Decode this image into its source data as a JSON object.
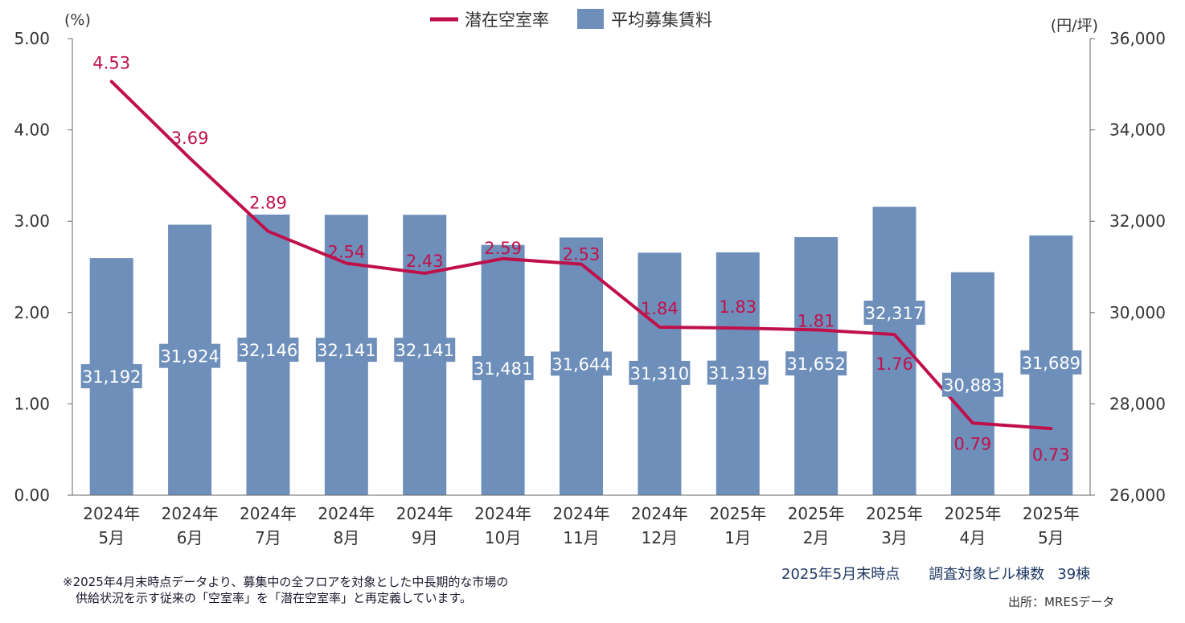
{
  "chart_data": {
    "type": "bar",
    "categories": [
      [
        "2024年",
        "5月"
      ],
      [
        "2024年",
        "6月"
      ],
      [
        "2024年",
        "7月"
      ],
      [
        "2024年",
        "8月"
      ],
      [
        "2024年",
        "9月"
      ],
      [
        "2024年",
        "10月"
      ],
      [
        "2024年",
        "11月"
      ],
      [
        "2024年",
        "12月"
      ],
      [
        "2025年",
        "1月"
      ],
      [
        "2025年",
        "2月"
      ],
      [
        "2025年",
        "3月"
      ],
      [
        "2025年",
        "4月"
      ],
      [
        "2025年",
        "5月"
      ]
    ],
    "series": [
      {
        "name": "平均募集賃料",
        "type": "bar",
        "axis": "right",
        "color": "#6f8fbb",
        "values": [
          31192,
          31924,
          32146,
          32141,
          32141,
          31481,
          31644,
          31310,
          31319,
          31652,
          32317,
          30883,
          31689
        ],
        "labels": [
          "31,192",
          "31,924",
          "32,146",
          "32,141",
          "32,141",
          "31,481",
          "31,644",
          "31,310",
          "31,319",
          "31,652",
          "32,317",
          "30,883",
          "31,689"
        ]
      },
      {
        "name": "潜在空室率",
        "type": "line",
        "axis": "left",
        "color": "#c0104a",
        "values": [
          4.53,
          3.69,
          2.89,
          2.54,
          2.43,
          2.59,
          2.53,
          1.84,
          1.83,
          1.81,
          1.76,
          0.79,
          0.73
        ],
        "labels": [
          "4.53",
          "3.69",
          "2.89",
          "2.54",
          "2.43",
          "2.59",
          "2.53",
          "1.84",
          "1.83",
          "1.81",
          "1.76",
          "0.79",
          "0.73"
        ]
      }
    ],
    "y_left": {
      "unit_label": "(%)",
      "min": 0,
      "max": 5,
      "ticks": [
        "0.00",
        "1.00",
        "2.00",
        "3.00",
        "4.00",
        "5.00"
      ]
    },
    "y_right": {
      "unit_label": "(円/坪)",
      "min": 26000,
      "max": 36000,
      "ticks": [
        "26,000",
        "28,000",
        "30,000",
        "32,000",
        "34,000",
        "36,000"
      ]
    },
    "legend": {
      "position": "top-center",
      "items": [
        "潜在空室率",
        "平均募集賃料"
      ]
    },
    "grid": false
  },
  "footnote": {
    "line1": "※2025年4月末時点データより、募集中の全フロアを対象とした中長期的な市場の",
    "line2": "供給状況を示す従来の「空室率」を「潜在空室率」と再定義しています。"
  },
  "info": {
    "as_of": "2025年5月末時点",
    "buildings_label": "調査対象ビル棟数",
    "buildings_count": "39棟"
  },
  "source": "出所：MRESデータ"
}
